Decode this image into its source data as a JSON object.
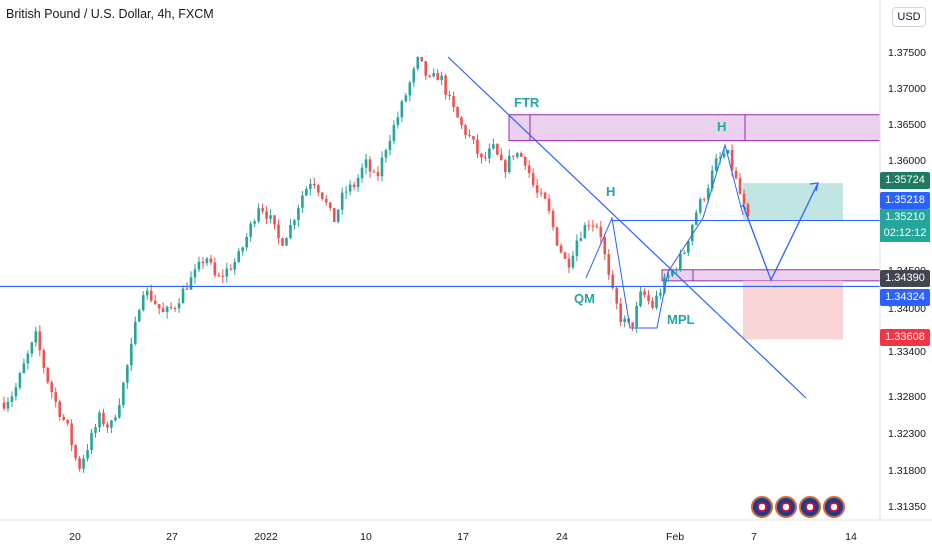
{
  "header": {
    "title": "British Pound / U.S. Dollar, 4h, FXCM"
  },
  "currency_button": "USD",
  "annotations": {
    "ftr": "FTR",
    "h1": "H",
    "h2": "H",
    "qm": "QM",
    "mpl": "MPL"
  },
  "price_labels": [
    {
      "text": "1.35724",
      "color": "#1f7a63"
    },
    {
      "text": "1.35218",
      "color": "#2962ff"
    },
    {
      "text": "1.35210",
      "color": "#26a69a"
    },
    {
      "text": "02:12:12",
      "color": "#26a69a"
    },
    {
      "text": "1.34390",
      "color": "#434651"
    },
    {
      "text": "1.34324",
      "color": "#2962ff"
    },
    {
      "text": "1.33608",
      "color": "#f23645"
    }
  ],
  "colors": {
    "up": "#26a69a",
    "down": "#ef5350",
    "trend": "#2962ff",
    "zone_fill": "#e1bee7",
    "zone_stroke": "#9c27b0",
    "target": "#b2dfdb",
    "stop": "#f8c9cc"
  },
  "chart_data": {
    "type": "candlestick",
    "title": "British Pound / U.S. Dollar, 4h, FXCM",
    "y_ticks": [
      "1.37500",
      "1.37000",
      "1.36500",
      "1.36000",
      "1.35500",
      "1.34500",
      "1.34000",
      "1.33400",
      "1.32800",
      "1.32300",
      "1.31800",
      "1.31350"
    ],
    "x_ticks": [
      "20",
      "27",
      "2022",
      "10",
      "17",
      "24",
      "Feb",
      "7",
      "14"
    ],
    "ylim": [
      1.3115,
      1.3775
    ],
    "key_levels": {
      "ftr_zone": [
        1.363,
        1.3665
      ],
      "mpl_zone": [
        1.344,
        1.3455
      ],
      "horizontal_support": 1.34324,
      "h_line": 1.35218
    },
    "trade": {
      "entry": 1.3521,
      "target": 1.35724,
      "stop": 1.33608
    },
    "path": [
      1.3275,
      1.329,
      1.333,
      1.3365,
      1.331,
      1.327,
      1.324,
      1.3185,
      1.322,
      1.3255,
      1.324,
      1.3285,
      1.335,
      1.343,
      1.3415,
      1.3395,
      1.3405,
      1.343,
      1.345,
      1.3475,
      1.344,
      1.3455,
      1.347,
      1.3505,
      1.3545,
      1.3525,
      1.349,
      1.3515,
      1.3555,
      1.358,
      1.3555,
      1.352,
      1.356,
      1.357,
      1.36,
      1.3575,
      1.3625,
      1.366,
      1.37,
      1.374,
      1.371,
      1.372,
      1.368,
      1.365,
      1.363,
      1.36,
      1.362,
      1.359,
      1.3615,
      1.3605,
      1.356,
      1.3545,
      1.3495,
      1.346,
      1.35,
      1.352,
      1.3515,
      1.3435,
      1.339,
      1.3375,
      1.3425,
      1.3405,
      1.3435,
      1.3455,
      1.348,
      1.353,
      1.356,
      1.36,
      1.3615,
      1.357,
      1.352
    ]
  }
}
